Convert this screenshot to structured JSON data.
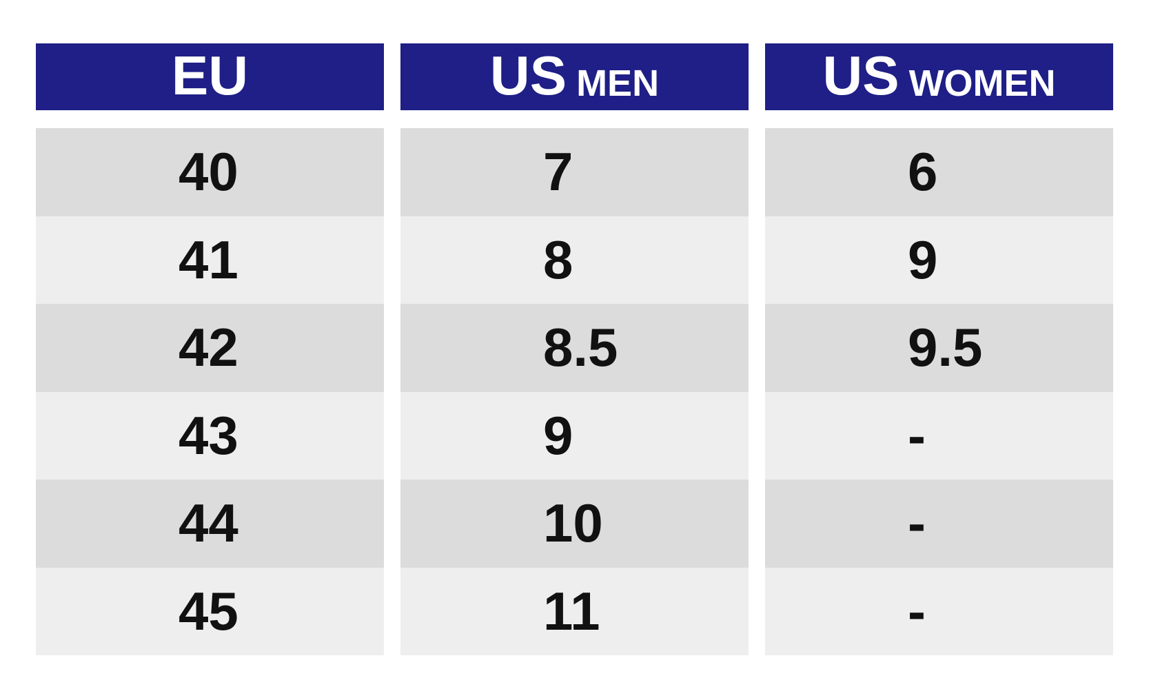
{
  "table": {
    "columns": [
      {
        "main": "EU"
      },
      {
        "main": "US",
        "sub": "MEN"
      },
      {
        "main": "US",
        "sub": "WOMEN"
      }
    ],
    "rows": [
      [
        "40",
        "7",
        "6"
      ],
      [
        "41",
        "8",
        "9"
      ],
      [
        "42",
        "8.5",
        "9.5"
      ],
      [
        "43",
        "9",
        "-"
      ],
      [
        "44",
        "10",
        "-"
      ],
      [
        "45",
        "11",
        "-"
      ]
    ]
  }
}
